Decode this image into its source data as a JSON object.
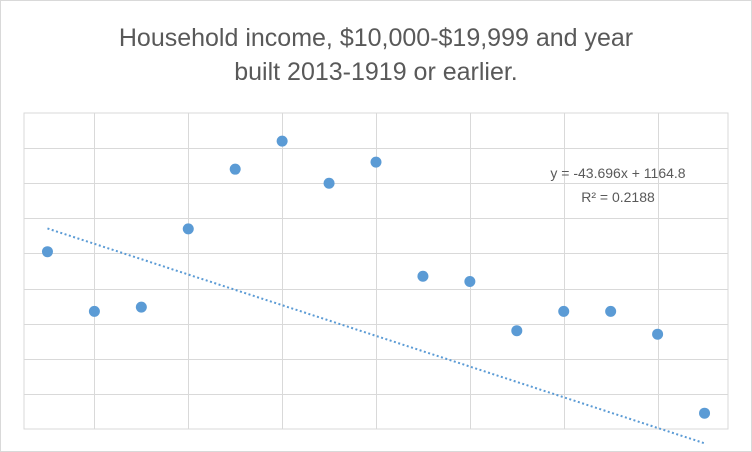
{
  "chart_data": {
    "type": "scatter",
    "title_lines": [
      "Household income, $10,000-$19,999 and year",
      "built 2013-1919 or earlier."
    ],
    "xlabel": "",
    "ylabel": "",
    "xlim": [
      0.5,
      15.5
    ],
    "ylim": [
      550,
      1450
    ],
    "grid": true,
    "x_gridlines": [
      2,
      4,
      6,
      8,
      10,
      12,
      14
    ],
    "y_gridlines": [
      650,
      750,
      850,
      950,
      1050,
      1150,
      1250,
      1350
    ],
    "tick_labels_visible": false,
    "series": [
      {
        "color": "#5b9bd5",
        "x": [
          1,
          2,
          3,
          4,
          5,
          6,
          7,
          8,
          9,
          10,
          11,
          12,
          13,
          14,
          15
        ],
        "y": [
          1055,
          885,
          897,
          1120,
          1290,
          1370,
          1250,
          1310,
          985,
          970,
          830,
          885,
          885,
          820,
          595
        ]
      }
    ],
    "trendline": {
      "type": "linear",
      "slope": -43.696,
      "intercept": 1164.8,
      "style": "dotted",
      "color": "#5b9bd5",
      "equation_label": "y = -43.696x + 1164.8",
      "r2_label": "R² = 0.2188"
    }
  }
}
